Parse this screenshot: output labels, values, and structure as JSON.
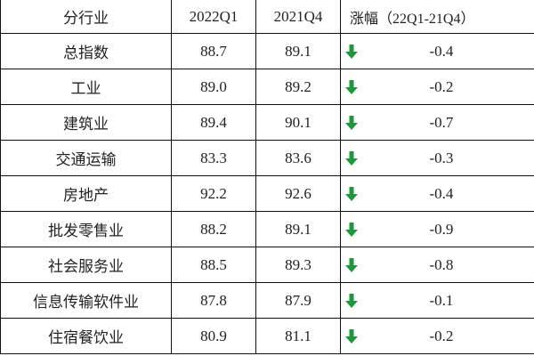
{
  "table": {
    "headers": {
      "industry": "分行业",
      "q1": "2022Q1",
      "q4": "2021Q4",
      "change_label": "涨幅",
      "change_range": "（22Q1-21Q4）"
    },
    "arrow_icon": "down-arrow-icon",
    "arrow_color": "#1a9a3c",
    "rows": [
      {
        "industry": "总指数",
        "q1": "88.7",
        "q4": "89.1",
        "direction": "down",
        "change": "-0.4"
      },
      {
        "industry": "工业",
        "q1": "89.0",
        "q4": "89.2",
        "direction": "down",
        "change": "-0.2"
      },
      {
        "industry": "建筑业",
        "q1": "89.4",
        "q4": "90.1",
        "direction": "down",
        "change": "-0.7"
      },
      {
        "industry": "交通运输",
        "q1": "83.3",
        "q4": "83.6",
        "direction": "down",
        "change": "-0.3"
      },
      {
        "industry": "房地产",
        "q1": "92.2",
        "q4": "92.6",
        "direction": "down",
        "change": "-0.4"
      },
      {
        "industry": "批发零售业",
        "q1": "88.2",
        "q4": "89.1",
        "direction": "down",
        "change": "-0.9"
      },
      {
        "industry": "社会服务业",
        "q1": "88.5",
        "q4": "89.3",
        "direction": "down",
        "change": "-0.8"
      },
      {
        "industry": "信息传输软件业",
        "q1": "87.8",
        "q4": "87.9",
        "direction": "down",
        "change": "-0.1"
      },
      {
        "industry": "住宿餐饮业",
        "q1": "80.9",
        "q4": "81.1",
        "direction": "down",
        "change": "-0.2"
      }
    ]
  }
}
